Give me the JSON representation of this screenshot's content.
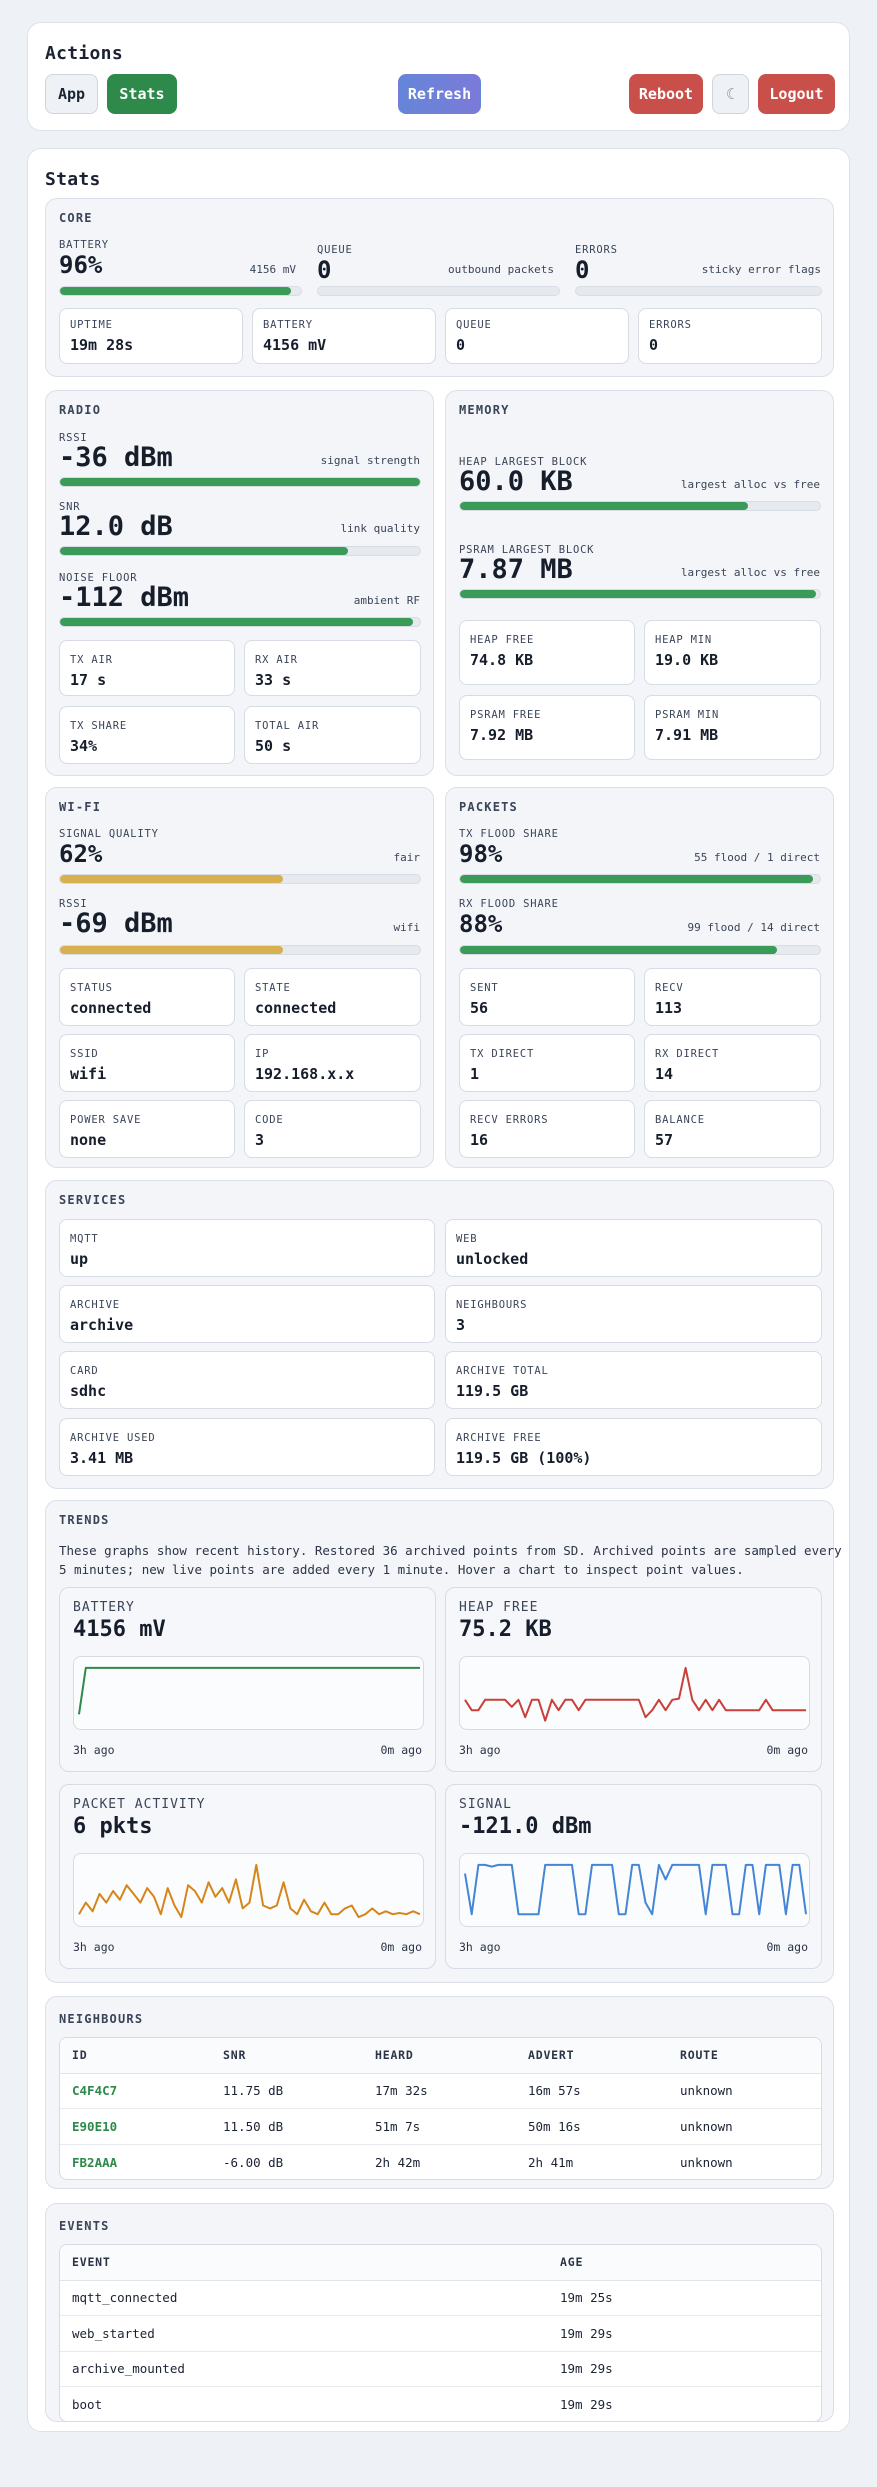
{
  "actions": {
    "title": "Actions",
    "app_label": "App",
    "stats_label": "Stats",
    "refresh_label": "Refresh",
    "reboot_label": "Reboot",
    "theme_label": "☾",
    "logout_label": "Logout"
  },
  "stats": {
    "title": "Stats",
    "core": {
      "title": "CORE",
      "battery": {
        "label": "BATTERY",
        "value": "96%",
        "hint": "4156 mV",
        "percent": 96
      },
      "queue": {
        "label": "QUEUE",
        "value": "0",
        "hint": "outbound packets",
        "percent": 0
      },
      "errors": {
        "label": "ERRORS",
        "value": "0",
        "hint": "sticky error flags",
        "percent": 0
      },
      "tiles": [
        {
          "label": "UPTIME",
          "value": "19m 28s"
        },
        {
          "label": "BATTERY",
          "value": "4156 mV"
        },
        {
          "label": "QUEUE",
          "value": "0"
        },
        {
          "label": "ERRORS",
          "value": "0"
        }
      ]
    },
    "radio": {
      "title": "RADIO",
      "rssi": {
        "label": "RSSI",
        "value": "-36 dBm",
        "hint": "signal strength",
        "percent": 100
      },
      "snr": {
        "label": "SNR",
        "value": "12.0 dB",
        "hint": "link quality",
        "percent": 80
      },
      "noise": {
        "label": "NOISE FLOOR",
        "value": "-112 dBm",
        "hint": "ambient RF",
        "percent": 98
      },
      "tiles": [
        {
          "label": "TX AIR",
          "value": "17 s"
        },
        {
          "label": "RX AIR",
          "value": "33 s"
        },
        {
          "label": "TX SHARE",
          "value": "34%"
        },
        {
          "label": "TOTAL AIR",
          "value": "50 s"
        }
      ]
    },
    "memory": {
      "title": "MEMORY",
      "heap_block": {
        "label": "HEAP LARGEST BLOCK",
        "value": "60.0 KB",
        "hint": "largest alloc vs free",
        "percent": 80
      },
      "psram_block": {
        "label": "PSRAM LARGEST BLOCK",
        "value": "7.87 MB",
        "hint": "largest alloc vs free",
        "percent": 99
      },
      "tiles": [
        {
          "label": "HEAP FREE",
          "value": "74.8 KB"
        },
        {
          "label": "HEAP MIN",
          "value": "19.0 KB"
        },
        {
          "label": "PSRAM FREE",
          "value": "7.92 MB"
        },
        {
          "label": "PSRAM MIN",
          "value": "7.91 MB"
        }
      ]
    },
    "wifi": {
      "title": "WI-FI",
      "signal": {
        "label": "SIGNAL QUALITY",
        "value": "62%",
        "hint": "fair",
        "percent": 62
      },
      "rssi": {
        "label": "RSSI",
        "value": "-69 dBm",
        "hint": "wifi",
        "percent": 62
      },
      "tiles": [
        {
          "label": "STATUS",
          "value": "connected"
        },
        {
          "label": "STATE",
          "value": "connected"
        },
        {
          "label": "SSID",
          "value": "wifi"
        },
        {
          "label": "IP",
          "value": "192.168.x.x"
        },
        {
          "label": "POWER SAVE",
          "value": "none"
        },
        {
          "label": "CODE",
          "value": "3"
        }
      ]
    },
    "packets": {
      "title": "PACKETS",
      "tx_flood": {
        "label": "TX FLOOD SHARE",
        "value": "98%",
        "hint": "55 flood / 1 direct",
        "percent": 98
      },
      "rx_flood": {
        "label": "RX FLOOD SHARE",
        "value": "88%",
        "hint": "99 flood / 14 direct",
        "percent": 88
      },
      "tiles": [
        {
          "label": "SENT",
          "value": "56"
        },
        {
          "label": "RECV",
          "value": "113"
        },
        {
          "label": "TX DIRECT",
          "value": "1"
        },
        {
          "label": "RX DIRECT",
          "value": "14"
        },
        {
          "label": "RECV ERRORS",
          "value": "16"
        },
        {
          "label": "BALANCE",
          "value": "57"
        }
      ]
    },
    "services": {
      "title": "SERVICES",
      "tiles": [
        {
          "label": "MQTT",
          "value": "up"
        },
        {
          "label": "WEB",
          "value": "unlocked"
        },
        {
          "label": "ARCHIVE",
          "value": "archive"
        },
        {
          "label": "NEIGHBOURS",
          "value": "3"
        },
        {
          "label": "CARD",
          "value": "sdhc"
        },
        {
          "label": "ARCHIVE TOTAL",
          "value": "119.5 GB"
        },
        {
          "label": "ARCHIVE USED",
          "value": "3.41 MB"
        },
        {
          "label": "ARCHIVE FREE",
          "value": "119.5 GB (100%)"
        }
      ]
    },
    "trends": {
      "title": "TRENDS",
      "description": "These graphs show recent history. Restored 36 archived points from SD. Archived points are sampled every 5 minutes; new live points are added every 1 minute. Hover a chart to inspect point values.",
      "charts": [
        {
          "title": "BATTERY",
          "value": "4156 mV",
          "x_start": "3h ago",
          "x_end": "0m ago",
          "color": "#2d8a4a",
          "points": [
            0.15,
            0.95,
            0.95,
            0.95,
            0.95,
            0.95,
            0.95,
            0.95,
            0.95,
            0.95,
            0.95,
            0.95,
            0.95,
            0.95,
            0.95,
            0.95,
            0.95,
            0.95,
            0.95,
            0.95,
            0.95,
            0.95,
            0.95,
            0.95,
            0.95,
            0.95,
            0.95,
            0.95,
            0.95,
            0.95,
            0.95,
            0.95,
            0.95,
            0.95,
            0.95,
            0.95,
            0.95,
            0.95,
            0.95,
            0.95,
            0.95,
            0.95,
            0.95,
            0.95,
            0.95,
            0.95,
            0.95,
            0.95,
            0.95,
            0.95,
            0.95
          ]
        },
        {
          "title": "HEAP FREE",
          "value": "75.2 KB",
          "x_start": "3h ago",
          "x_end": "0m ago",
          "color": "#c9403a",
          "points": [
            0.4,
            0.22,
            0.22,
            0.4,
            0.4,
            0.4,
            0.4,
            0.28,
            0.4,
            0.1,
            0.4,
            0.4,
            0.04,
            0.4,
            0.22,
            0.4,
            0.4,
            0.22,
            0.4,
            0.4,
            0.4,
            0.4,
            0.4,
            0.4,
            0.4,
            0.4,
            0.4,
            0.1,
            0.22,
            0.4,
            0.22,
            0.4,
            0.42,
            0.95,
            0.4,
            0.22,
            0.4,
            0.22,
            0.4,
            0.22,
            0.22,
            0.22,
            0.22,
            0.22,
            0.22,
            0.4,
            0.22,
            0.22,
            0.22,
            0.22,
            0.22,
            0.22
          ]
        },
        {
          "title": "PACKET ACTIVITY",
          "value": "6 pkts",
          "x_start": "3h ago",
          "x_end": "0m ago",
          "color": "#d7851b",
          "points": [
            0.1,
            0.3,
            0.15,
            0.45,
            0.3,
            0.5,
            0.35,
            0.6,
            0.45,
            0.3,
            0.55,
            0.4,
            0.1,
            0.55,
            0.25,
            0.05,
            0.6,
            0.5,
            0.3,
            0.65,
            0.4,
            0.55,
            0.3,
            0.7,
            0.2,
            0.3,
            0.95,
            0.25,
            0.2,
            0.25,
            0.65,
            0.2,
            0.1,
            0.35,
            0.15,
            0.1,
            0.3,
            0.1,
            0.1,
            0.2,
            0.25,
            0.05,
            0.1,
            0.2,
            0.1,
            0.15,
            0.1,
            0.12,
            0.1,
            0.15,
            0.1
          ]
        },
        {
          "title": "SIGNAL",
          "value": "-121.0 dBm",
          "x_start": "3h ago",
          "x_end": "0m ago",
          "color": "#4585d6",
          "points": [
            0.8,
            0.1,
            0.95,
            0.95,
            0.92,
            0.95,
            0.95,
            0.95,
            0.1,
            0.1,
            0.1,
            0.1,
            0.95,
            0.95,
            0.95,
            0.95,
            0.95,
            0.1,
            0.1,
            0.95,
            0.95,
            0.95,
            0.95,
            0.1,
            0.1,
            0.95,
            0.95,
            0.3,
            0.1,
            0.95,
            0.7,
            0.95,
            0.95,
            0.95,
            0.95,
            0.95,
            0.1,
            0.95,
            0.95,
            0.95,
            0.1,
            0.1,
            0.95,
            0.95,
            0.1,
            0.95,
            0.95,
            0.95,
            0.1,
            0.95,
            0.95,
            0.1
          ]
        }
      ]
    },
    "neighbours": {
      "title": "NEIGHBOURS",
      "columns": [
        "ID",
        "SNR",
        "HEARD",
        "ADVERT",
        "ROUTE"
      ],
      "rows": [
        [
          "C4F4C7",
          "11.75 dB",
          "17m 32s",
          "16m 57s",
          "unknown"
        ],
        [
          "E90E10",
          "11.50 dB",
          "51m 7s",
          "50m 16s",
          "unknown"
        ],
        [
          "FB2AAA",
          "-6.00 dB",
          "2h 42m",
          "2h 41m",
          "unknown"
        ]
      ]
    },
    "events": {
      "title": "EVENTS",
      "columns": [
        "EVENT",
        "AGE"
      ],
      "rows": [
        [
          "mqtt_connected",
          "19m 25s"
        ],
        [
          "web_started",
          "19m 29s"
        ],
        [
          "archive_mounted",
          "19m 29s"
        ],
        [
          "boot",
          "19m 29s"
        ]
      ]
    }
  }
}
